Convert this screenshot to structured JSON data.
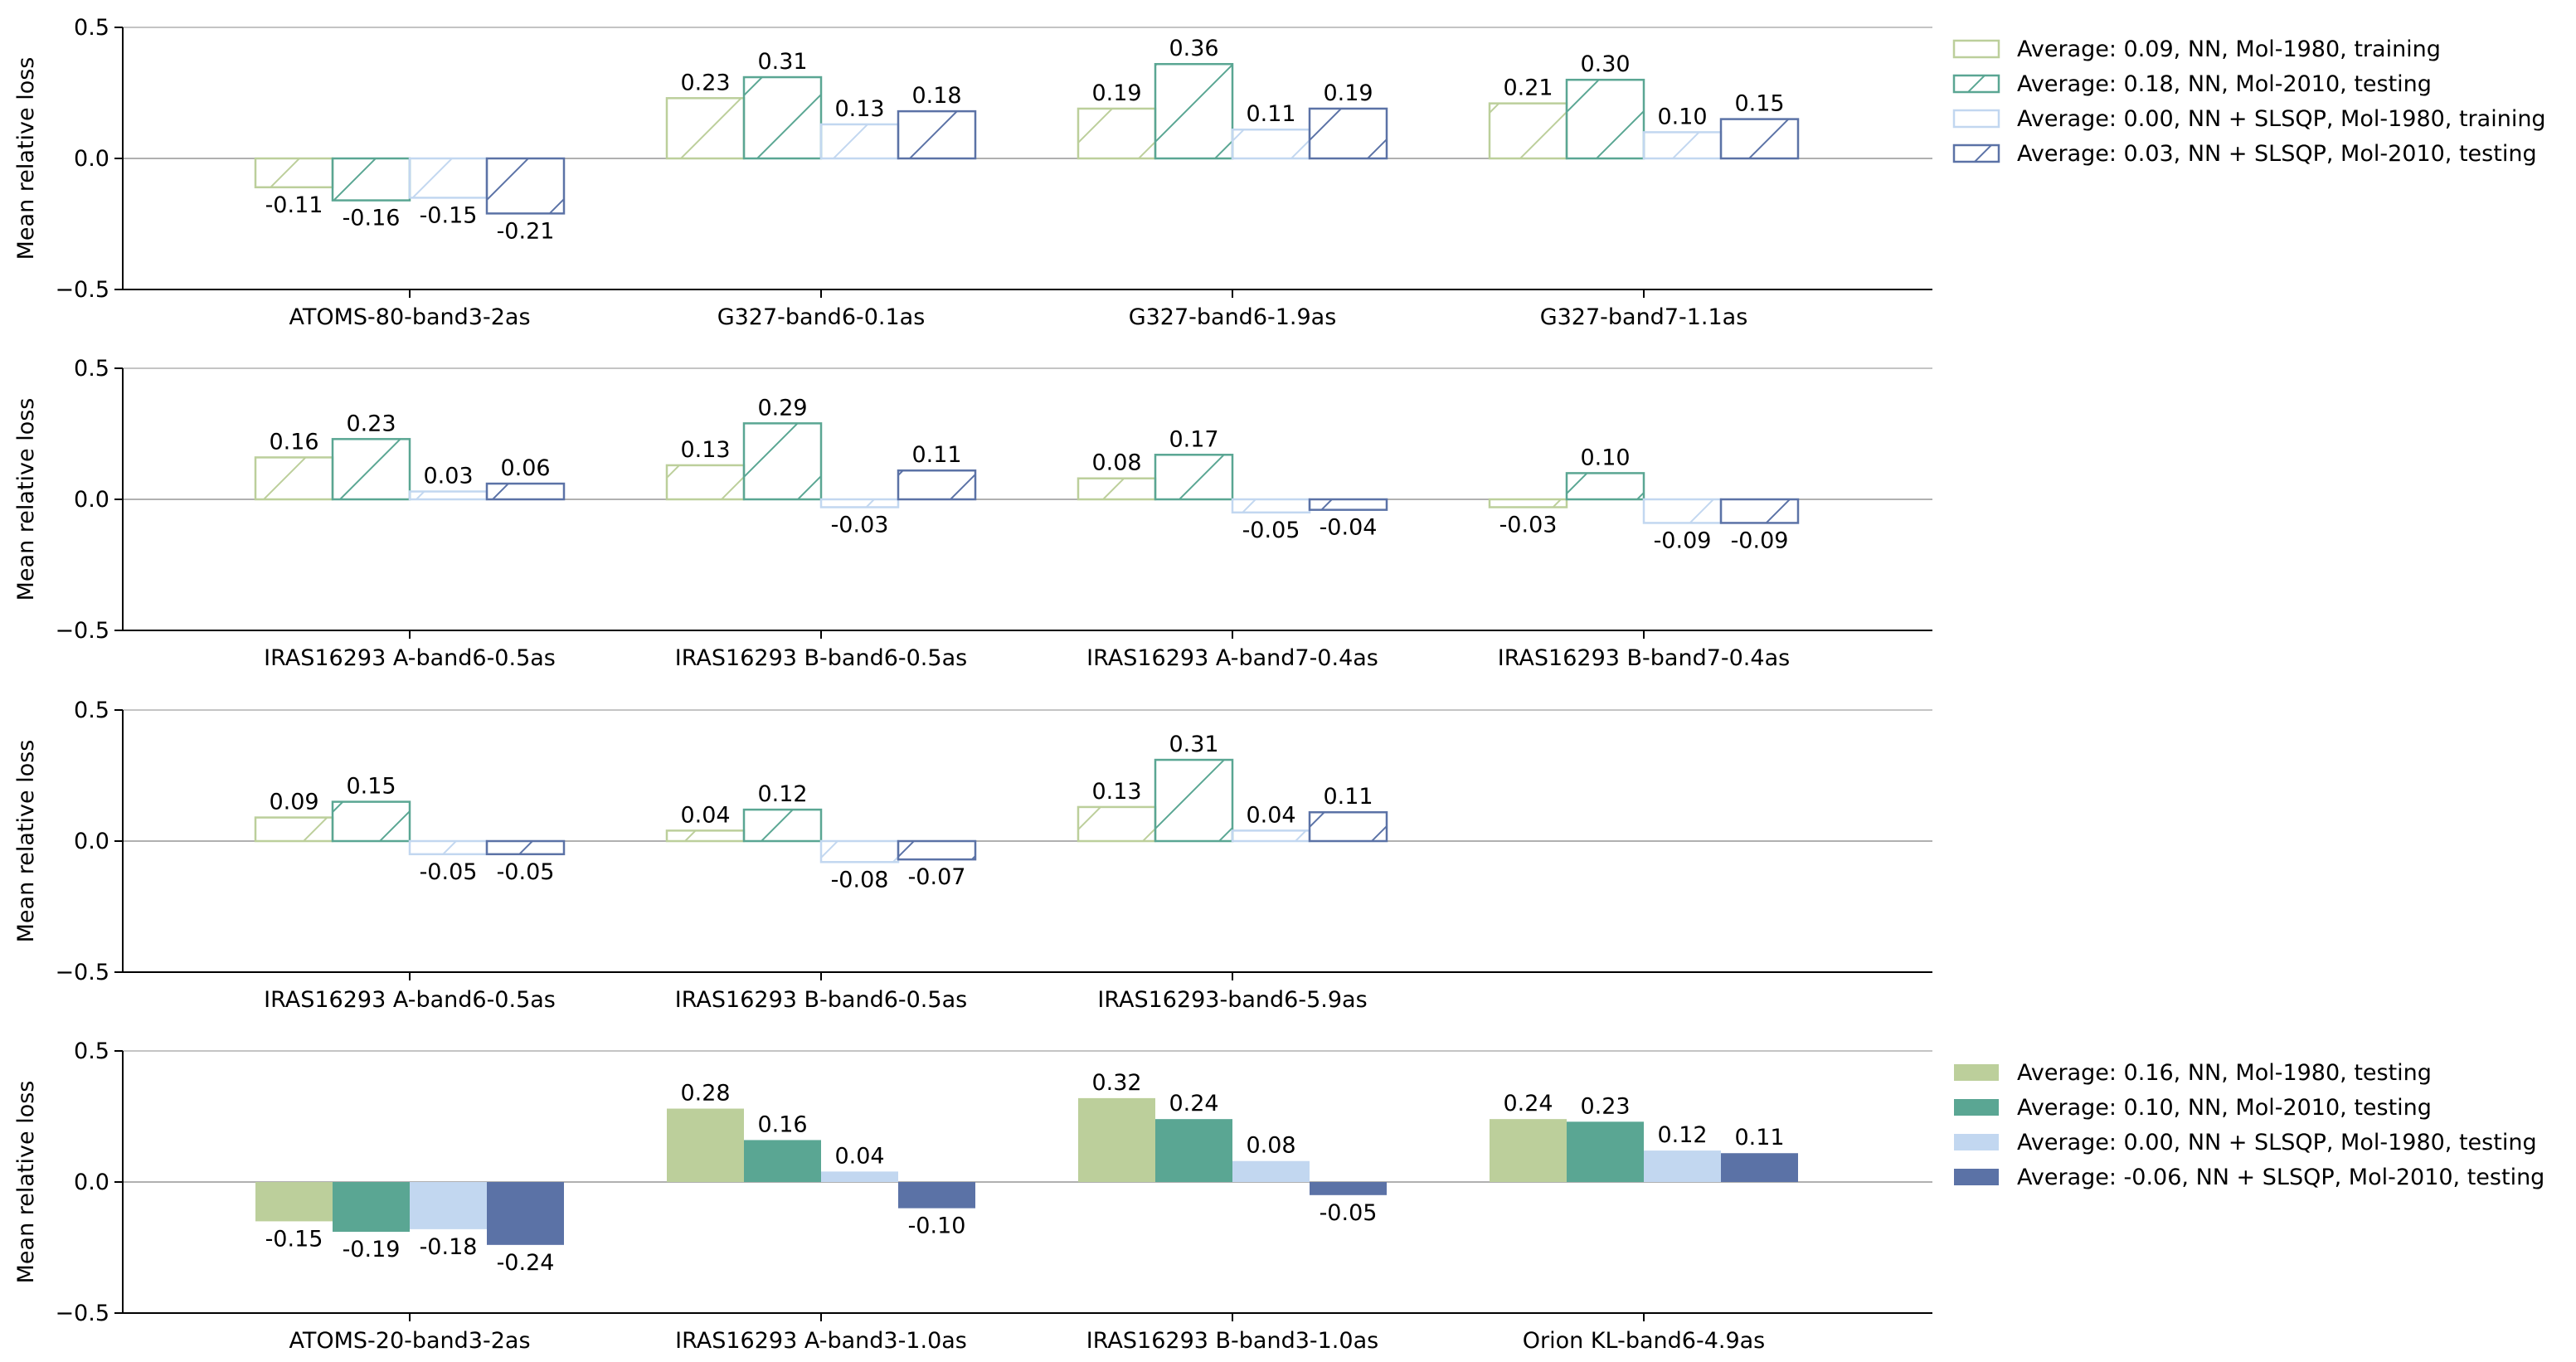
{
  "colors": {
    "nn_1980": "#bccf9b",
    "nn_2010": "#5aa693",
    "slsqp_1980": "#c2d7f0",
    "slsqp_2010": "#5b72a6",
    "axis": "#000000",
    "zero_line": "#b0b0b0"
  },
  "chart_data": [
    {
      "type": "bar",
      "style": "hatched",
      "ylabel": "Mean relative loss",
      "ylim": [
        -0.5,
        0.5
      ],
      "yticks": [
        "0.5",
        "0.0",
        "−0.5"
      ],
      "categories": [
        "ATOMS-80-band3-2as",
        "G327-band6-0.1as",
        "G327-band6-1.9as",
        "G327-band7-1.1as"
      ],
      "series": [
        {
          "name": "nn_1980",
          "values": [
            -0.11,
            0.23,
            0.19,
            0.21
          ],
          "labels": [
            "-0.11",
            "0.23",
            "0.19",
            "0.21"
          ]
        },
        {
          "name": "nn_2010",
          "values": [
            -0.16,
            0.31,
            0.36,
            0.3
          ],
          "labels": [
            "-0.16",
            "0.31",
            "0.36",
            "0.30"
          ]
        },
        {
          "name": "slsqp_1980",
          "values": [
            -0.15,
            0.13,
            0.11,
            0.1
          ],
          "labels": [
            "-0.15",
            "0.13",
            "0.11",
            "0.10"
          ]
        },
        {
          "name": "slsqp_2010",
          "values": [
            -0.21,
            0.18,
            0.19,
            0.15
          ],
          "labels": [
            "-0.21",
            "0.18",
            "0.19",
            "0.15"
          ]
        }
      ],
      "legend": {
        "position": "right",
        "entries": [
          "Average: 0.09, NN, Mol-1980, training",
          "Average: 0.18, NN, Mol-2010, testing",
          "Average: 0.00, NN + SLSQP, Mol-1980, training",
          "Average: 0.03, NN + SLSQP, Mol-2010, testing"
        ]
      }
    },
    {
      "type": "bar",
      "style": "hatched",
      "ylabel": "Mean relative loss",
      "ylim": [
        -0.5,
        0.5
      ],
      "yticks": [
        "0.5",
        "0.0",
        "−0.5"
      ],
      "categories": [
        "IRAS16293 A-band6-0.5as",
        "IRAS16293 B-band6-0.5as",
        "IRAS16293 A-band7-0.4as",
        "IRAS16293 B-band7-0.4as"
      ],
      "series": [
        {
          "name": "nn_1980",
          "values": [
            0.16,
            0.13,
            0.08,
            -0.03
          ],
          "labels": [
            "0.16",
            "0.13",
            "0.08",
            "-0.03"
          ]
        },
        {
          "name": "nn_2010",
          "values": [
            0.23,
            0.29,
            0.17,
            0.1
          ],
          "labels": [
            "0.23",
            "0.29",
            "0.17",
            "0.10"
          ]
        },
        {
          "name": "slsqp_1980",
          "values": [
            0.03,
            -0.03,
            -0.05,
            -0.09
          ],
          "labels": [
            "0.03",
            "-0.03",
            "-0.05",
            "-0.09"
          ]
        },
        {
          "name": "slsqp_2010",
          "values": [
            0.06,
            0.11,
            -0.04,
            -0.09
          ],
          "labels": [
            "0.06",
            "0.11",
            "-0.04",
            "-0.09"
          ]
        }
      ]
    },
    {
      "type": "bar",
      "style": "hatched",
      "ylabel": "Mean relative loss",
      "ylim": [
        -0.5,
        0.5
      ],
      "yticks": [
        "0.5",
        "0.0",
        "−0.5"
      ],
      "categories": [
        "IRAS16293 A-band6-0.5as",
        "IRAS16293 B-band6-0.5as",
        "IRAS16293-band6-5.9as"
      ],
      "series": [
        {
          "name": "nn_1980",
          "values": [
            0.09,
            0.04,
            0.13
          ],
          "labels": [
            "0.09",
            "0.04",
            "0.13"
          ]
        },
        {
          "name": "nn_2010",
          "values": [
            0.15,
            0.12,
            0.31
          ],
          "labels": [
            "0.15",
            "0.12",
            "0.31"
          ]
        },
        {
          "name": "slsqp_1980",
          "values": [
            -0.05,
            -0.08,
            0.04
          ],
          "labels": [
            "-0.05",
            "-0.08",
            "0.04"
          ]
        },
        {
          "name": "slsqp_2010",
          "values": [
            -0.05,
            -0.07,
            0.11
          ],
          "labels": [
            "-0.05",
            "-0.07",
            "0.11"
          ]
        }
      ]
    },
    {
      "type": "bar",
      "style": "filled",
      "ylabel": "Mean relative loss",
      "ylim": [
        -0.5,
        0.5
      ],
      "yticks": [
        "0.5",
        "0.0",
        "−0.5"
      ],
      "categories": [
        "ATOMS-20-band3-2as",
        "IRAS16293 A-band3-1.0as",
        "IRAS16293 B-band3-1.0as",
        "Orion KL-band6-4.9as"
      ],
      "series": [
        {
          "name": "nn_1980",
          "values": [
            -0.15,
            0.28,
            0.32,
            0.24
          ],
          "labels": [
            "-0.15",
            "0.28",
            "0.32",
            "0.24"
          ]
        },
        {
          "name": "nn_2010",
          "values": [
            -0.19,
            0.16,
            0.24,
            0.23
          ],
          "labels": [
            "-0.19",
            "0.16",
            "0.24",
            "0.23"
          ]
        },
        {
          "name": "slsqp_1980",
          "values": [
            -0.18,
            0.04,
            0.08,
            0.12
          ],
          "labels": [
            "-0.18",
            "0.04",
            "0.08",
            "0.12"
          ]
        },
        {
          "name": "slsqp_2010",
          "values": [
            -0.24,
            -0.1,
            -0.05,
            0.11
          ],
          "labels": [
            "-0.24",
            "-0.10",
            "-0.05",
            "0.11"
          ]
        }
      ],
      "legend": {
        "position": "right",
        "entries": [
          "Average: 0.16, NN, Mol-1980, testing",
          "Average: 0.10, NN, Mol-2010, testing",
          "Average: 0.00, NN + SLSQP, Mol-1980, testing",
          "Average: -0.06, NN + SLSQP, Mol-2010, testing"
        ]
      }
    }
  ]
}
